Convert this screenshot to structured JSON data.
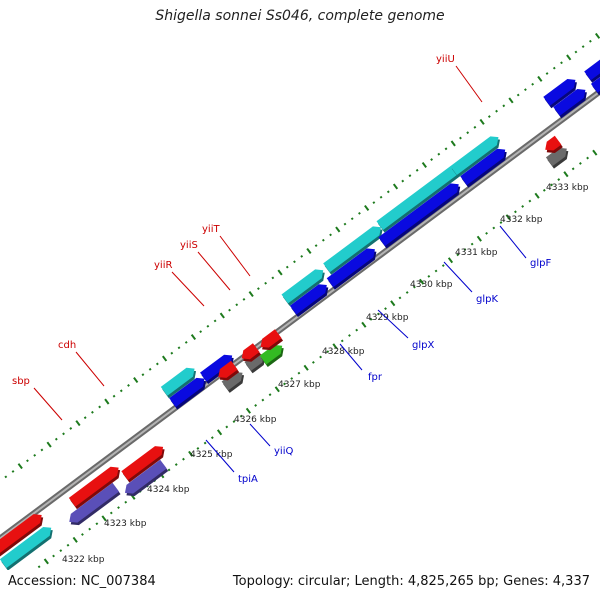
{
  "title": "Shigella sonnei Ss046, complete genome",
  "footer": {
    "accession": "Accession: NC_007384",
    "summary": "Topology: circular; Length: 4,825,265 bp; Genes: 4,337"
  },
  "colors": {
    "backbone": "#8a8a8a",
    "forward_gene": "#0a0ae0",
    "reverse_gene": "#e81010",
    "rna_gene": "#22cccc",
    "pseudo_gene": "#6a6a6a",
    "other_gene": "#5a4fb8",
    "green_gene": "#33bb22",
    "tick": "#1d7a1d",
    "label_red": "#cc0000",
    "label_blue": "#0000cc"
  },
  "ticks": [
    {
      "label": "4322 kbp"
    },
    {
      "label": "4323 kbp"
    },
    {
      "label": "4324 kbp"
    },
    {
      "label": "4325 kbp"
    },
    {
      "label": "4326 kbp"
    },
    {
      "label": "4327 kbp"
    },
    {
      "label": "4328 kbp"
    },
    {
      "label": "4329 kbp"
    },
    {
      "label": "4330 kbp"
    },
    {
      "label": "4331 kbp"
    },
    {
      "label": "4332 kbp"
    },
    {
      "label": "4333 kbp"
    }
  ],
  "gene_labels": [
    {
      "name": "sbp",
      "strand": "upper"
    },
    {
      "name": "cdh",
      "strand": "upper"
    },
    {
      "name": "yiiR",
      "strand": "upper"
    },
    {
      "name": "yiiS",
      "strand": "upper"
    },
    {
      "name": "yiiT",
      "strand": "upper"
    },
    {
      "name": "yiiU",
      "strand": "upper"
    },
    {
      "name": "tpiA",
      "strand": "lower"
    },
    {
      "name": "yiiQ",
      "strand": "lower"
    },
    {
      "name": "fpr",
      "strand": "lower"
    },
    {
      "name": "glpX",
      "strand": "lower"
    },
    {
      "name": "glpK",
      "strand": "lower"
    },
    {
      "name": "glpF",
      "strand": "lower"
    }
  ]
}
